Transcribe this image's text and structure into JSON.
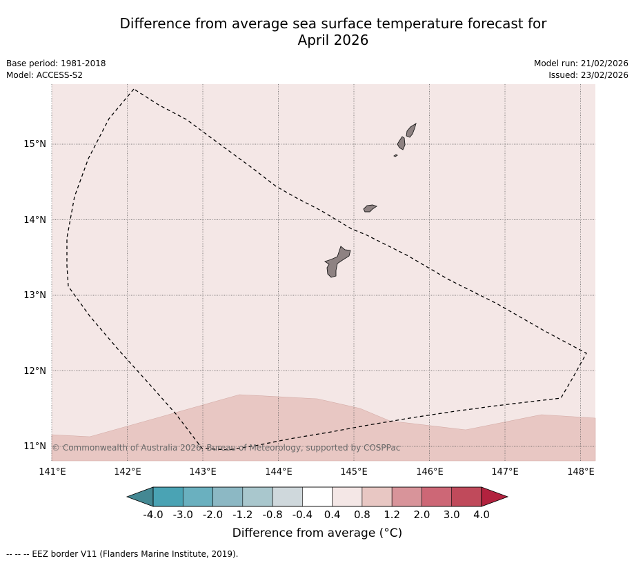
{
  "title_line1": "Difference from average sea surface temperature forecast for",
  "title_line2": "April 2026",
  "base_period": "Base period: 1981-2018",
  "model": "Model: ACCESS-S2",
  "model_run": "Model run: 21/02/2026",
  "issued": "Issued: 23/02/2026",
  "copyright": "© Commonwealth of Australia 2026, Bureau of Meteorology, supported by COSPPac",
  "lon_labels": [
    "141°E",
    "142°E",
    "143°E",
    "144°E",
    "145°E",
    "146°E",
    "147°E",
    "148°E"
  ],
  "lat_labels": [
    "15°N",
    "14°N",
    "13°N",
    "12°N",
    "11°N"
  ],
  "legend": {
    "ticks": [
      "-4.0",
      "-3.0",
      "-2.0",
      "-1.2",
      "-0.8",
      "-0.4",
      "0.4",
      "0.8",
      "1.2",
      "2.0",
      "3.0",
      "4.0"
    ],
    "colors": [
      "#4aa3b4",
      "#6ab0bf",
      "#8cb8c4",
      "#a9c7cd",
      "#cfd8dc",
      "#ffffff",
      "#f4e7e6",
      "#e8c7c3",
      "#d8949a",
      "#cd6776",
      "#c04a5b"
    ],
    "under_color": "#448893",
    "over_color": "#b2223e",
    "title": "Difference from average (°C)"
  },
  "footnote": "--  --  -- EEZ border V11 (Flanders Marine Institute, 2019).",
  "colors": {
    "map_background": "#f4e7e6",
    "warm_band": "#e8c7c3",
    "land": "#8e8282"
  }
}
